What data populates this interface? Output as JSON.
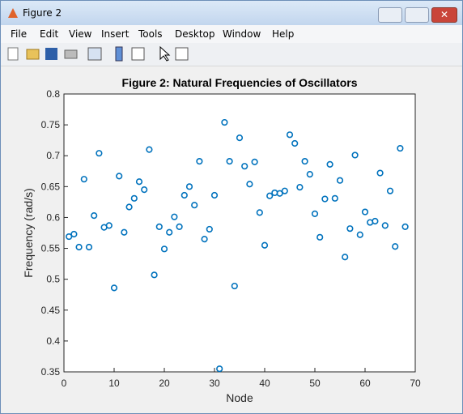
{
  "window": {
    "title": "Figure 2",
    "menus": [
      "File",
      "Edit",
      "View",
      "Insert",
      "Tools",
      "Desktop",
      "Window",
      "Help"
    ]
  },
  "chart_data": {
    "type": "scatter",
    "title": "Figure 2: Natural Frequencies of Oscillators",
    "x_label": "Node",
    "y_label": "Frequency (rad/s)",
    "x": [
      1,
      2,
      3,
      4,
      5,
      6,
      7,
      8,
      9,
      10,
      11,
      12,
      13,
      14,
      15,
      16,
      17,
      18,
      19,
      20,
      21,
      22,
      23,
      24,
      25,
      26,
      27,
      28,
      29,
      30,
      31,
      32,
      33,
      34,
      35,
      36,
      37,
      38,
      39,
      40,
      41,
      42,
      43,
      44,
      45,
      46,
      47,
      48,
      49,
      50,
      51,
      52,
      53,
      54,
      55,
      56,
      57,
      58,
      59,
      60,
      61,
      62,
      63,
      64,
      65,
      66,
      67,
      68
    ],
    "values": [
      0.569,
      0.573,
      0.552,
      0.662,
      0.552,
      0.603,
      0.704,
      0.584,
      0.587,
      0.486,
      0.667,
      0.576,
      0.617,
      0.631,
      0.658,
      0.645,
      0.71,
      0.507,
      0.585,
      0.549,
      0.576,
      0.601,
      0.585,
      0.636,
      0.65,
      0.62,
      0.691,
      0.565,
      0.581,
      0.636,
      0.355,
      0.754,
      0.691,
      0.489,
      0.729,
      0.683,
      0.654,
      0.69,
      0.608,
      0.555,
      0.635,
      0.64,
      0.639,
      0.643,
      0.734,
      0.72,
      0.649,
      0.691,
      0.67,
      0.606,
      0.568,
      0.63,
      0.686,
      0.631,
      0.66,
      0.536,
      0.582,
      0.701,
      0.572,
      0.609,
      0.592,
      0.594,
      0.672,
      0.587,
      0.643,
      0.553,
      0.712,
      0.585
    ],
    "color": "#0072bd",
    "xlim": [
      0,
      70
    ],
    "xticks": [
      0,
      10,
      20,
      30,
      40,
      50,
      60,
      70
    ],
    "ylim": [
      0.35,
      0.8
    ],
    "yticks": [
      0.35,
      0.4,
      0.45,
      0.5,
      0.55,
      0.6,
      0.65,
      0.7,
      0.75,
      0.8
    ],
    "grid": false
  }
}
